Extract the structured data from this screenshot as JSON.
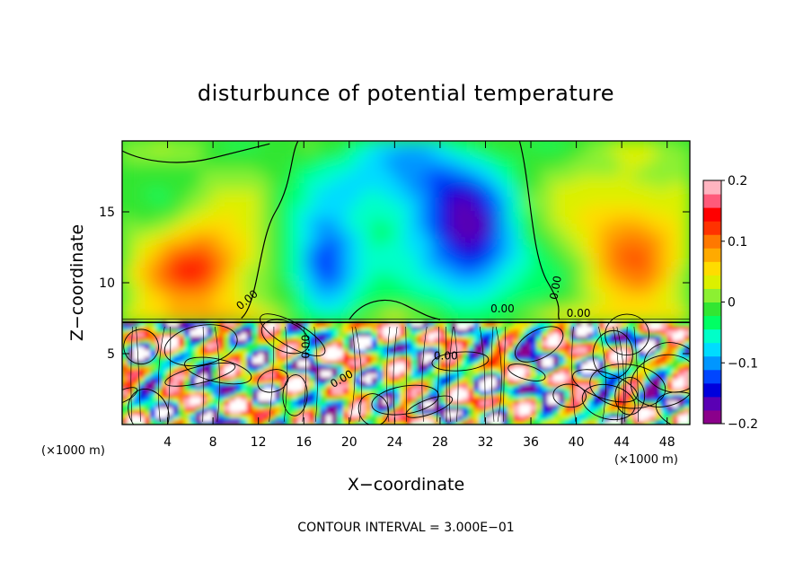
{
  "chart_data": {
    "type": "heatmap",
    "title": "disturbunce of potential temperature",
    "xlabel": "X−coordinate",
    "ylabel": "Z−coordinate",
    "x_unit": "(×1000 m)",
    "z_unit": "(×1000 m)",
    "xlim": [
      0,
      50
    ],
    "ylim": [
      0,
      20
    ],
    "x_ticks": [
      4,
      8,
      12,
      16,
      20,
      24,
      28,
      32,
      36,
      40,
      44,
      48
    ],
    "y_ticks": [
      5,
      10,
      15
    ],
    "colorbar": {
      "range": [
        -0.2,
        0.2
      ],
      "tick_values": [
        0.2,
        0.1,
        0,
        -0.1,
        -0.2
      ],
      "tick_labels": [
        "0.2",
        "0.1",
        "0",
        "−0.1",
        "−0.2"
      ],
      "colors": [
        "#8b008b",
        "#5a00b4",
        "#0000dc",
        "#0046ff",
        "#0096ff",
        "#00dcff",
        "#00ffc8",
        "#00ff64",
        "#32e632",
        "#8cf032",
        "#dcf000",
        "#ffdc00",
        "#ffaa00",
        "#ff7800",
        "#ff3200",
        "#ff0000",
        "#ff5a7a",
        "#ffb4c0"
      ]
    },
    "contour_interval_label": "CONTOUR INTERVAL = 3.000E−01",
    "contour_labels": [
      "0.00",
      "0.00",
      "0.00",
      "0.00",
      "0.00",
      "0.00",
      "0.00"
    ],
    "features": [
      {
        "x": 7,
        "z": 11,
        "value": 0.13,
        "sx": 4.5,
        "sz": 3.2
      },
      {
        "x": 45,
        "z": 13,
        "value": 0.1,
        "sx": 4.5,
        "sz": 4.5
      },
      {
        "x": 18,
        "z": 11,
        "value": -0.15,
        "sx": 3.0,
        "sz": 3.5
      },
      {
        "x": 31,
        "z": 12,
        "value": -0.14,
        "sx": 4.0,
        "sz": 4.0
      },
      {
        "x": 27,
        "z": 16,
        "value": -0.08,
        "sx": 6.0,
        "sz": 4.0
      },
      {
        "x": 24,
        "z": 18,
        "value": -0.05,
        "sx": 9.0,
        "sz": 3.0
      }
    ],
    "boundary_layer_top_z": 7.2
  }
}
